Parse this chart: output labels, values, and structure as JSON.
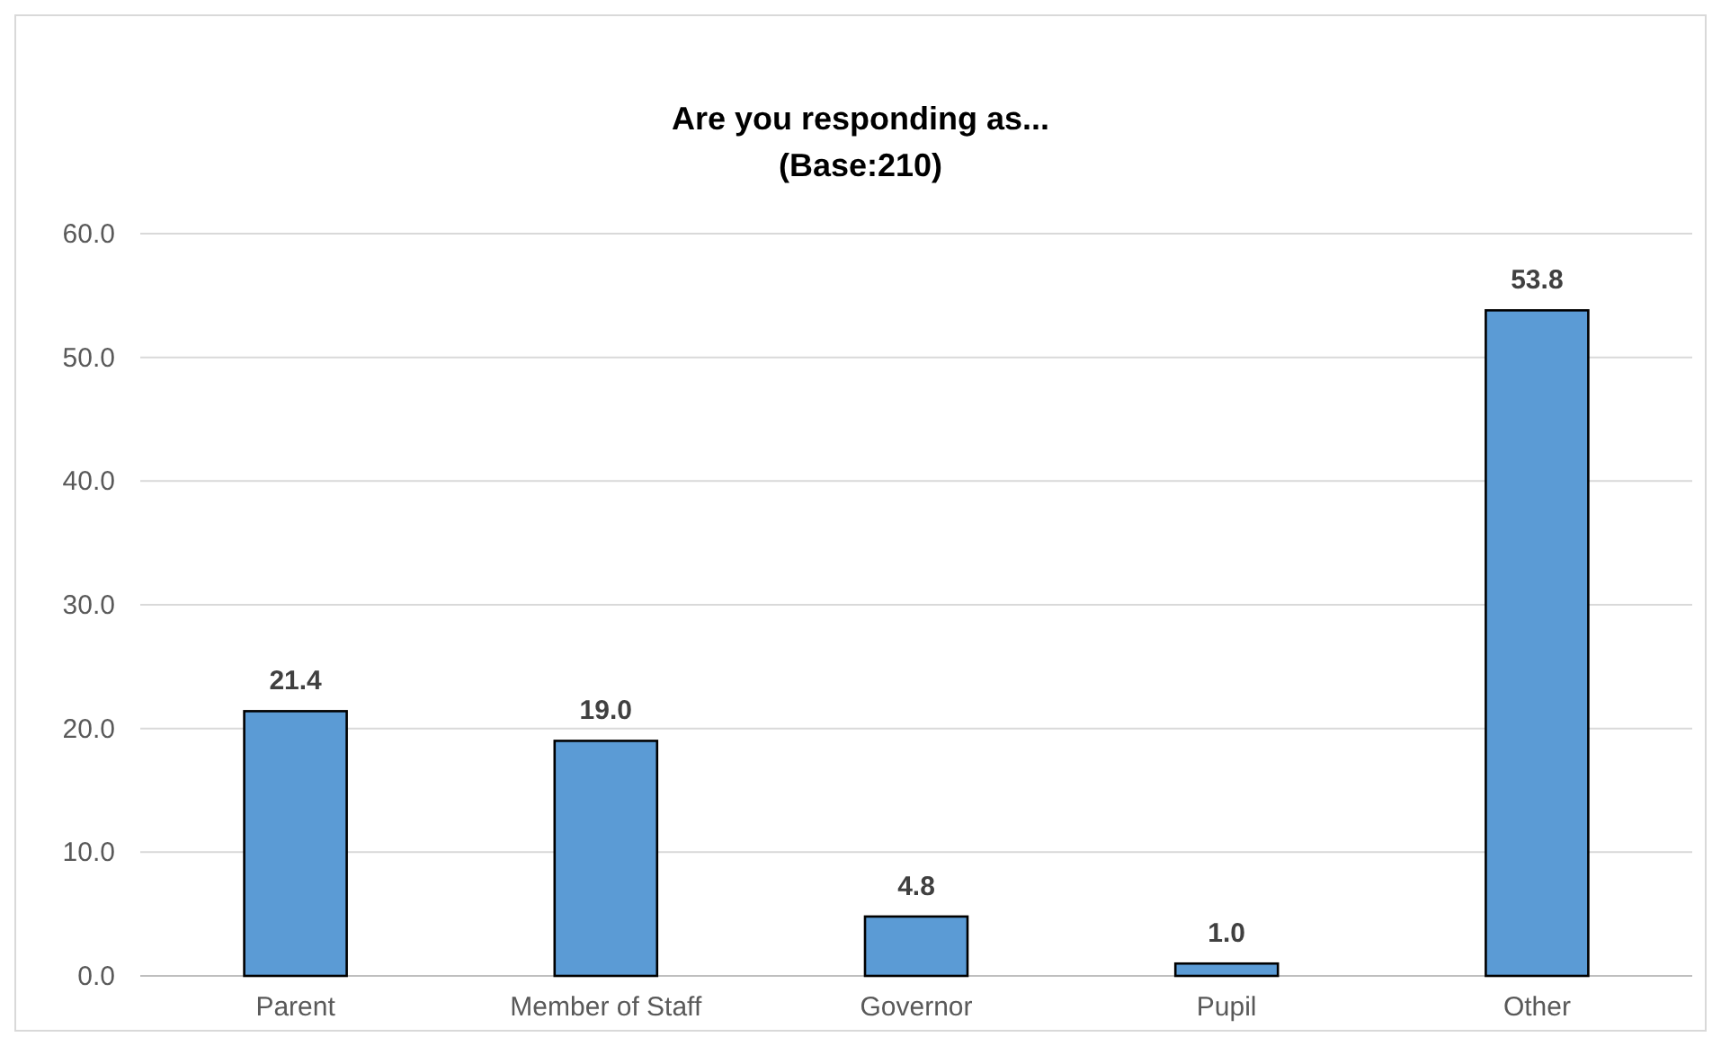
{
  "chart_data": {
    "type": "bar",
    "title": "Are you responding as...",
    "subtitle": "(Base:210)",
    "categories": [
      "Parent",
      "Member of Staff",
      "Governor",
      "Pupil",
      "Other"
    ],
    "values": [
      21.4,
      19.0,
      4.8,
      1.0,
      53.8
    ],
    "color": "#5b9bd5",
    "ylim": [
      0,
      60
    ],
    "yticks": [
      {
        "value": 0,
        "label": "0.0"
      },
      {
        "value": 10,
        "label": "10.0"
      },
      {
        "value": 20,
        "label": "20.0"
      },
      {
        "value": 30,
        "label": "30.0"
      },
      {
        "value": 40,
        "label": "40.0"
      },
      {
        "value": 50,
        "label": "50.0"
      },
      {
        "value": 60,
        "label": "60.0"
      }
    ],
    "grid": "y",
    "value_labels": [
      "21.4",
      "19.0",
      "4.8",
      "1.0",
      "53.8"
    ]
  }
}
